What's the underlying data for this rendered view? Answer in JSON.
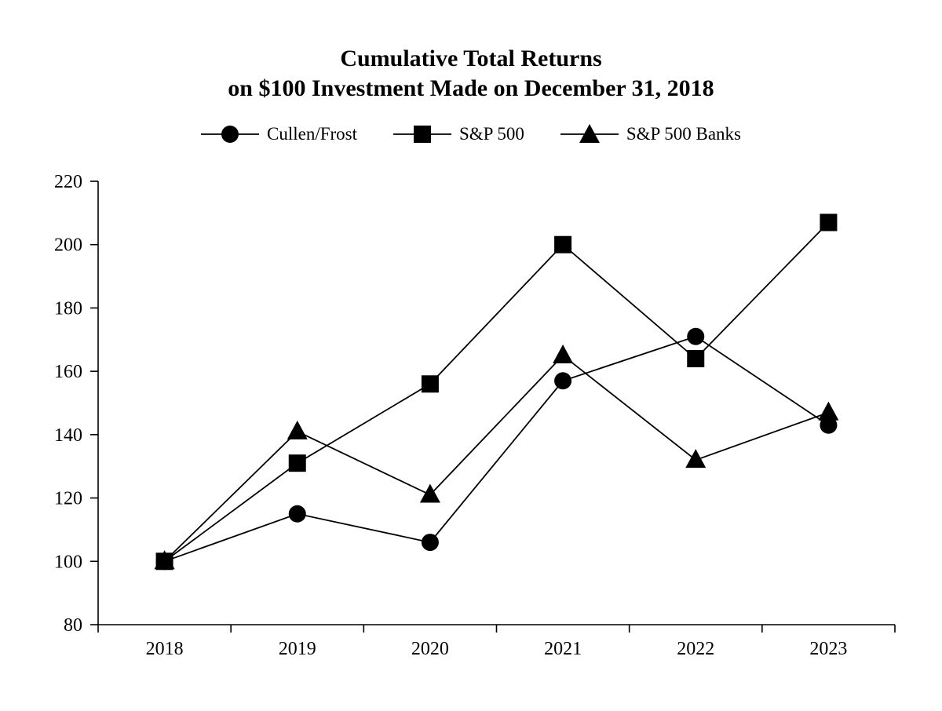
{
  "chart_data": {
    "type": "line",
    "title_lines": [
      "Cumulative Total Returns",
      "on $100 Investment Made on December 31, 2018"
    ],
    "categories": [
      "2018",
      "2019",
      "2020",
      "2021",
      "2022",
      "2023"
    ],
    "series": [
      {
        "name": "Cullen/Frost",
        "marker": "circle",
        "values": [
          100,
          115,
          106,
          157,
          171,
          143
        ]
      },
      {
        "name": "S&P 500",
        "marker": "square",
        "values": [
          100,
          131,
          156,
          200,
          164,
          207
        ]
      },
      {
        "name": "S&P 500 Banks",
        "marker": "triangle",
        "values": [
          100,
          141,
          121,
          165,
          132,
          147
        ]
      }
    ],
    "ylim": [
      80,
      220
    ],
    "ytick_step": 20,
    "xlabel": "",
    "ylabel": "",
    "grid": false,
    "legend_position": "top",
    "colors": {
      "line": "#000000",
      "marker": "#000000",
      "background": "#ffffff",
      "text": "#000000"
    }
  }
}
